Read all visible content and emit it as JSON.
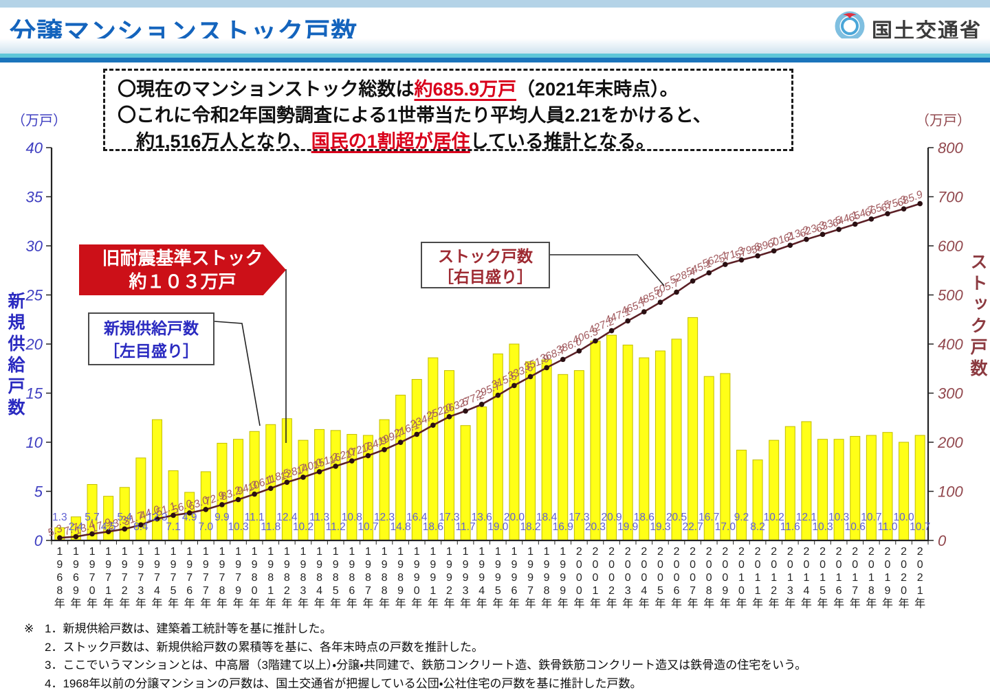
{
  "header": {
    "title": "分譲マンションストック戸数",
    "agency": "国土交通省"
  },
  "summary": {
    "l1a": "〇現在のマンションストック総数は",
    "l1b": "約685.9万戸",
    "l1c": "（2021年末時点）。",
    "l2": "〇これに令和2年国勢調査による1世帯当たり平均人員2.21をかけると、",
    "l3a": "　約1,516万人となり、",
    "l3b": "国民の1割超が居住",
    "l3c": "している推計となる。"
  },
  "chart_data": {
    "type": "bar+line",
    "title": "分譲マンションストック戸数",
    "x_years": [
      1968,
      1969,
      1970,
      1971,
      1972,
      1973,
      1974,
      1975,
      1976,
      1977,
      1978,
      1979,
      1980,
      1981,
      1982,
      1983,
      1984,
      1985,
      1986,
      1987,
      1988,
      1989,
      1990,
      1991,
      1992,
      1993,
      1994,
      1995,
      1996,
      1997,
      1998,
      1999,
      2000,
      2001,
      2002,
      2003,
      2004,
      2005,
      2006,
      2007,
      2008,
      2009,
      2010,
      2011,
      2012,
      2013,
      2014,
      2015,
      2016,
      2017,
      2018,
      2019,
      2020,
      2021
    ],
    "x_suffix": "年",
    "series": [
      {
        "name": "新規供給戸数（左目盛り）",
        "type": "bar",
        "axis": "left",
        "values": [
          1.3,
          2.4,
          5.7,
          4.5,
          5.4,
          8.4,
          12.3,
          7.1,
          4.9,
          7.0,
          9.9,
          10.3,
          11.1,
          11.8,
          12.4,
          10.2,
          11.3,
          11.2,
          10.8,
          10.7,
          12.3,
          14.8,
          16.4,
          18.6,
          17.3,
          11.7,
          13.6,
          19.0,
          20.0,
          18.2,
          18.4,
          16.9,
          17.3,
          20.3,
          20.9,
          19.9,
          18.6,
          19.3,
          20.5,
          22.7,
          16.7,
          17.0,
          9.2,
          8.2,
          10.2,
          11.6,
          12.1,
          10.3,
          10.3,
          10.6,
          10.7,
          11.0,
          10.0,
          10.7
        ]
      },
      {
        "name": "ストック戸数（右目盛り）",
        "type": "line",
        "axis": "right",
        "values": [
          5.3,
          7.7,
          13.4,
          17.9,
          23.3,
          31.7,
          44.0,
          51.1,
          56.0,
          63.0,
          72.9,
          83.2,
          94.3,
          106.1,
          118.5,
          128.7,
          140.0,
          151.2,
          162.0,
          172.7,
          184.9,
          199.7,
          216.1,
          234.7,
          252.0,
          263.6,
          277.2,
          295.7,
          315.5,
          333.6,
          351.9,
          368.7,
          386.0,
          406.3,
          427.2,
          447.1,
          465.7,
          485.0,
          505.7,
          528.4,
          545.1,
          562.1,
          571.3,
          579.6,
          589.7,
          601.2,
          613.2,
          623.3,
          633.5,
          644.1,
          654.7,
          665.5,
          675.3,
          685.9
        ]
      }
    ],
    "left_axis": {
      "unit": "（万戸）",
      "title": "新規供給戸数",
      "min": 0,
      "max": 40,
      "tick_step": 5
    },
    "right_axis": {
      "unit": "（万戸）",
      "title": "ストック戸数",
      "min": 0,
      "max": 800,
      "tick_step": 100
    },
    "grid": false,
    "legend_position": "callout-boxes"
  },
  "annotations": {
    "old_seismic": {
      "line1": "旧耐震基準ストック",
      "line2": "約１０３万戸"
    },
    "bar_legend": {
      "line1": "新規供給戸数",
      "line2": "［左目盛り］"
    },
    "line_legend": {
      "line1": "ストック戸数",
      "line2": "［右目盛り］"
    }
  },
  "notes": {
    "marker": "※",
    "items": [
      "1．新規供給戸数は、建築着工統計等を基に推計した。",
      "2．ストック戸数は、新規供給戸数の累積等を基に、各年末時点の戸数を推計した。",
      "3．ここでいうマンションとは、中高層（3階建て以上）・分譲・共同建で、鉄筋コンクリート造、鉄骨鉄筋コンクリート造又は鉄骨造の住宅をいう。",
      "4．1968年以前の分譲マンションの戸数は、国土交通省が把握している公団・公社住宅の戸数を基に推計した戸数。"
    ]
  },
  "colors": {
    "title_blue": "#1464bd",
    "header_teal": "#5fc6d8",
    "header_blue": "#1b74bb",
    "highlight_red": "#d9001b",
    "arrow_red": "#cc1018",
    "bar_fill": "#ffff17",
    "bar_stroke": "#c2bd00",
    "line_stroke": "#5c2026",
    "dot_fill": "#2b1013",
    "stock_label": "#a25c60",
    "bar_label": "#6060d2",
    "left_axis_text": "#3d3dc0",
    "right_axis_text": "#91474d",
    "axis_line": "#222222"
  }
}
